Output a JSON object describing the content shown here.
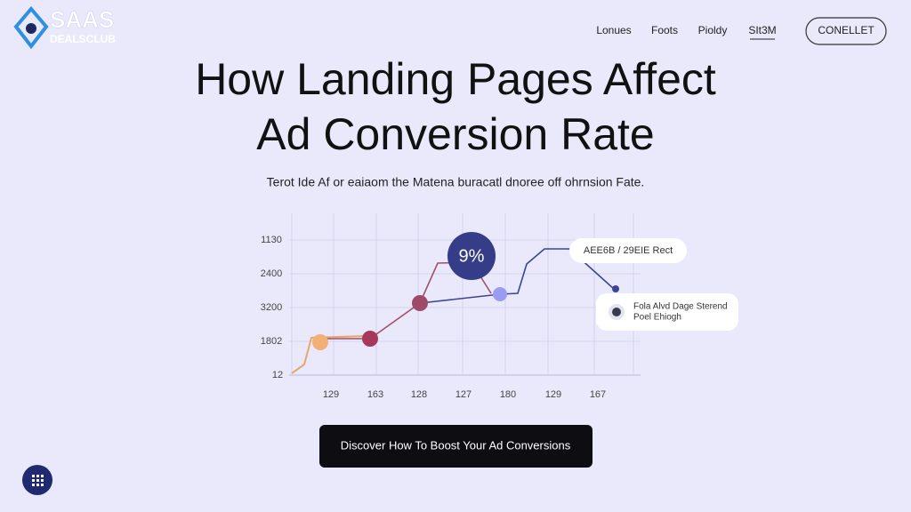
{
  "header": {
    "logo": {
      "primary": "SAAS",
      "secondary": "DEALSCLUB"
    },
    "nav": [
      "Lonues",
      "Foots",
      "Pioldy",
      "SIt3M"
    ],
    "button": "CONELLET"
  },
  "hero": {
    "title_lines": [
      "How Landing Pages Affect",
      "Ad Conversion Rate"
    ],
    "subtitle": "Terot Ide Af or eaiaom the Matena buracatl dnoree off ohrnsion Fate."
  },
  "illustration": {
    "y_labels": [
      "1130",
      "2400",
      "3200",
      "1802",
      "12"
    ],
    "x_labels": [
      "129",
      "163",
      "128",
      "127",
      "180",
      "129",
      "167"
    ],
    "bubble": "9%",
    "callout_top": "AEE6B / 29EIE Rect",
    "callout_bottom": [
      "Fola Alvd Dage Sterend",
      "Poel Ehiogh"
    ]
  },
  "cta": "Discover How To Boost Your Ad Conversions"
}
